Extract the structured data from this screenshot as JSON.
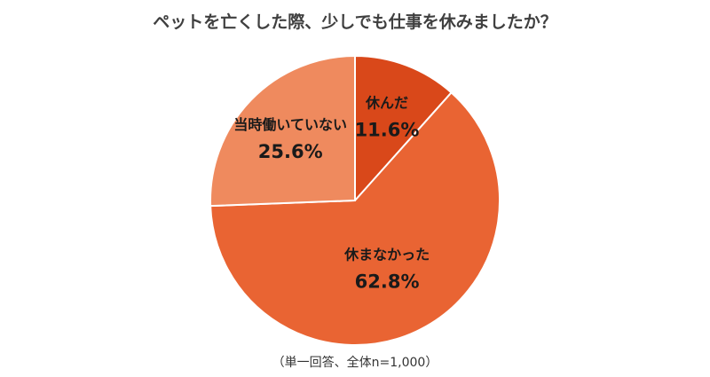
{
  "chart_data": {
    "type": "pie",
    "title": "ペットを亡くした際、少しでも仕事を休みましたか？",
    "note": "（単一回答、全体n=1,000）",
    "slices": [
      {
        "label": "休んだ",
        "value": 11.6,
        "value_label": "11.6%",
        "color": "#d9481a"
      },
      {
        "label": "休まなかった",
        "value": 62.8,
        "value_label": "62.8%",
        "color": "#e96433"
      },
      {
        "label": "当時働いていない",
        "value": 25.6,
        "value_label": "25.6%",
        "color": "#ef8a5e"
      }
    ],
    "start_angle": "12 o'clock",
    "direction": "clockwise",
    "legend": "none"
  }
}
